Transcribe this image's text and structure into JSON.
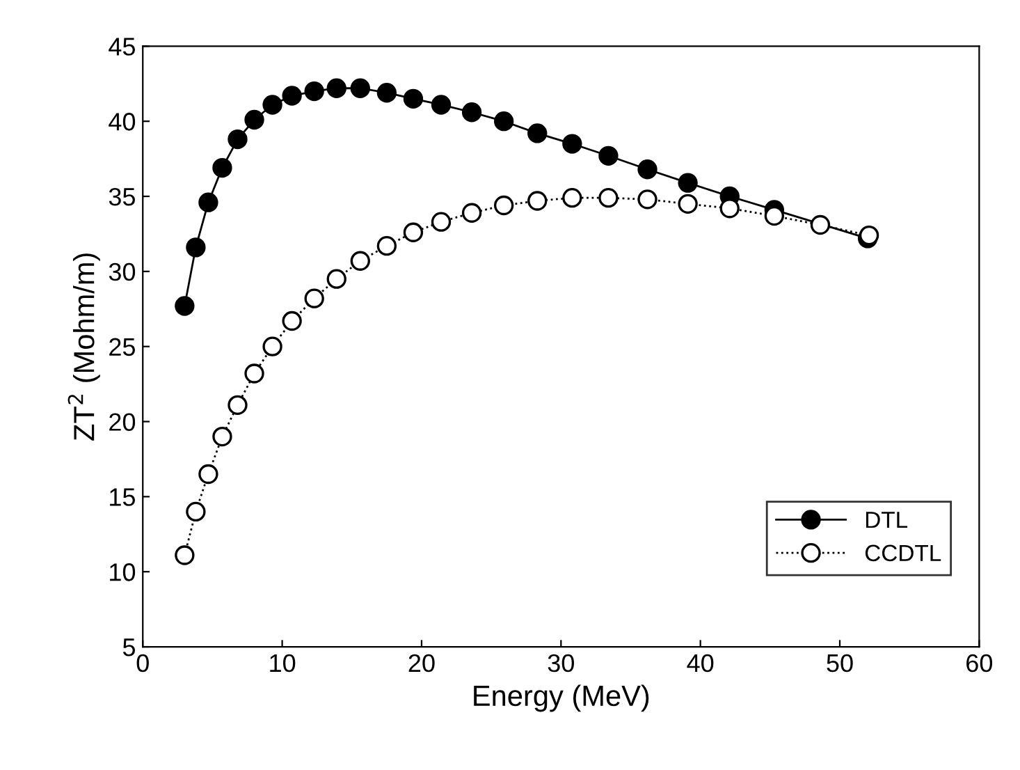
{
  "chart_data": {
    "type": "line",
    "xlabel": "Energy (MeV)",
    "ylabel": "ZT$^{2}$ (Mohm/m)",
    "xlim": [
      0,
      60
    ],
    "xticks": [
      0,
      10,
      20,
      30,
      40,
      50,
      60
    ],
    "ylim": [
      5,
      45
    ],
    "yticks": [
      5,
      10,
      15,
      20,
      25,
      30,
      35,
      40,
      45
    ],
    "grid": false,
    "legend": "bottom right",
    "series": [
      {
        "name": "DTL",
        "color": "#000000",
        "marker": "circle",
        "line_style": "solid",
        "x": [
          3.0,
          3.8,
          4.7,
          5.7,
          6.8,
          8.0,
          9.3,
          10.7,
          12.3,
          13.9,
          15.6,
          17.5,
          19.4,
          21.4,
          23.6,
          25.9,
          28.3,
          30.8,
          33.4,
          36.2,
          39.1,
          42.1,
          45.3,
          52.0
        ],
        "values": [
          27.7,
          31.6,
          34.6,
          36.9,
          38.8,
          40.1,
          41.1,
          41.7,
          42.0,
          42.2,
          42.2,
          41.9,
          41.5,
          41.1,
          40.6,
          40.0,
          39.2,
          38.5,
          37.7,
          36.8,
          35.9,
          35.0,
          34.1,
          32.2
        ]
      },
      {
        "name": "CCDTL",
        "color": "#000000",
        "marker": "circle",
        "line_style": "dotted",
        "x": [
          3.0,
          3.8,
          4.7,
          5.7,
          6.8,
          8.0,
          9.3,
          10.7,
          12.3,
          13.9,
          15.6,
          17.5,
          19.4,
          21.4,
          23.6,
          25.9,
          28.3,
          30.8,
          33.4,
          36.2,
          39.1,
          42.1,
          45.3,
          48.6,
          52.1
        ],
        "values": [
          11.1,
          14.0,
          16.5,
          19.0,
          21.1,
          23.2,
          25.0,
          26.7,
          28.2,
          29.5,
          30.7,
          31.7,
          32.6,
          33.3,
          33.9,
          34.4,
          34.7,
          34.9,
          34.9,
          34.8,
          34.5,
          34.2,
          33.7,
          33.1,
          32.4
        ]
      }
    ]
  }
}
